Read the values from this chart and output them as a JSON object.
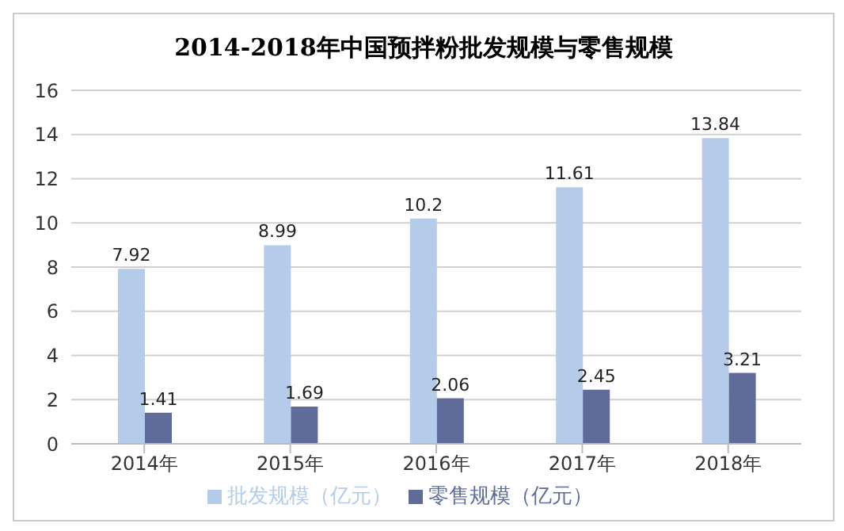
{
  "chart_data": {
    "type": "bar",
    "title": "2014-2018年中国预拌粉批发规模与零售规模",
    "categories": [
      "2014年",
      "2015年",
      "2016年",
      "2017年",
      "2018年"
    ],
    "series": [
      {
        "name": "批发规模（亿元）",
        "color": "#b4cbe9",
        "values": [
          7.92,
          8.99,
          10.2,
          11.61,
          13.84
        ]
      },
      {
        "name": "零售规模（亿元）",
        "color": "#5f6b99",
        "values": [
          1.41,
          1.69,
          2.06,
          2.45,
          3.21
        ]
      }
    ],
    "ylim": [
      0,
      16
    ],
    "yticks": [
      0,
      2,
      4,
      6,
      8,
      10,
      12,
      14,
      16
    ],
    "grid": "y",
    "legend": "bottom",
    "data_labels": true
  }
}
